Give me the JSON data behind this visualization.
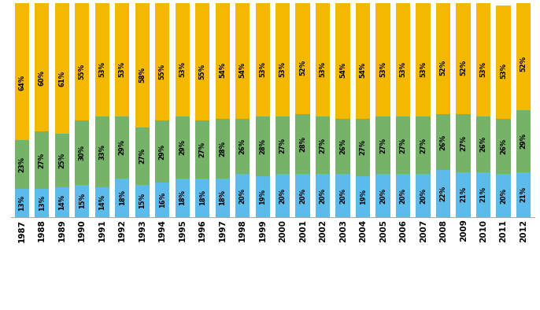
{
  "years": [
    "1987",
    "1988",
    "1989",
    "1990",
    "1991",
    "1992",
    "1993",
    "1994",
    "1995",
    "1996",
    "1997",
    "1998",
    "1999",
    "2000",
    "2001",
    "2002",
    "2003",
    "2004",
    "2005",
    "2006",
    "2007",
    "2008",
    "2009",
    "2010",
    "2011",
    "2012"
  ],
  "municipios": [
    13,
    13,
    14,
    15,
    14,
    18,
    15,
    16,
    18,
    18,
    18,
    20,
    19,
    20,
    20,
    20,
    20,
    19,
    20,
    20,
    20,
    22,
    21,
    21,
    20,
    21
  ],
  "estados": [
    23,
    27,
    25,
    30,
    33,
    29,
    27,
    29,
    29,
    27,
    28,
    26,
    28,
    27,
    28,
    27,
    26,
    27,
    27,
    27,
    27,
    26,
    27,
    26,
    26,
    29
  ],
  "uniao": [
    64,
    60,
    61,
    55,
    53,
    53,
    58,
    55,
    53,
    55,
    54,
    54,
    53,
    53,
    52,
    53,
    54,
    54,
    53,
    53,
    53,
    52,
    52,
    53,
    53,
    52
  ],
  "color_municipios": "#5DBBEC",
  "color_estados": "#76B267",
  "color_uniao": "#F5B800",
  "bg_color": "#FFFFFF",
  "fontsize_labels": 6.0,
  "fontsize_legend": 8.5,
  "fontsize_ticks": 7.5,
  "legend_square_size": 8,
  "bar_width": 0.72
}
